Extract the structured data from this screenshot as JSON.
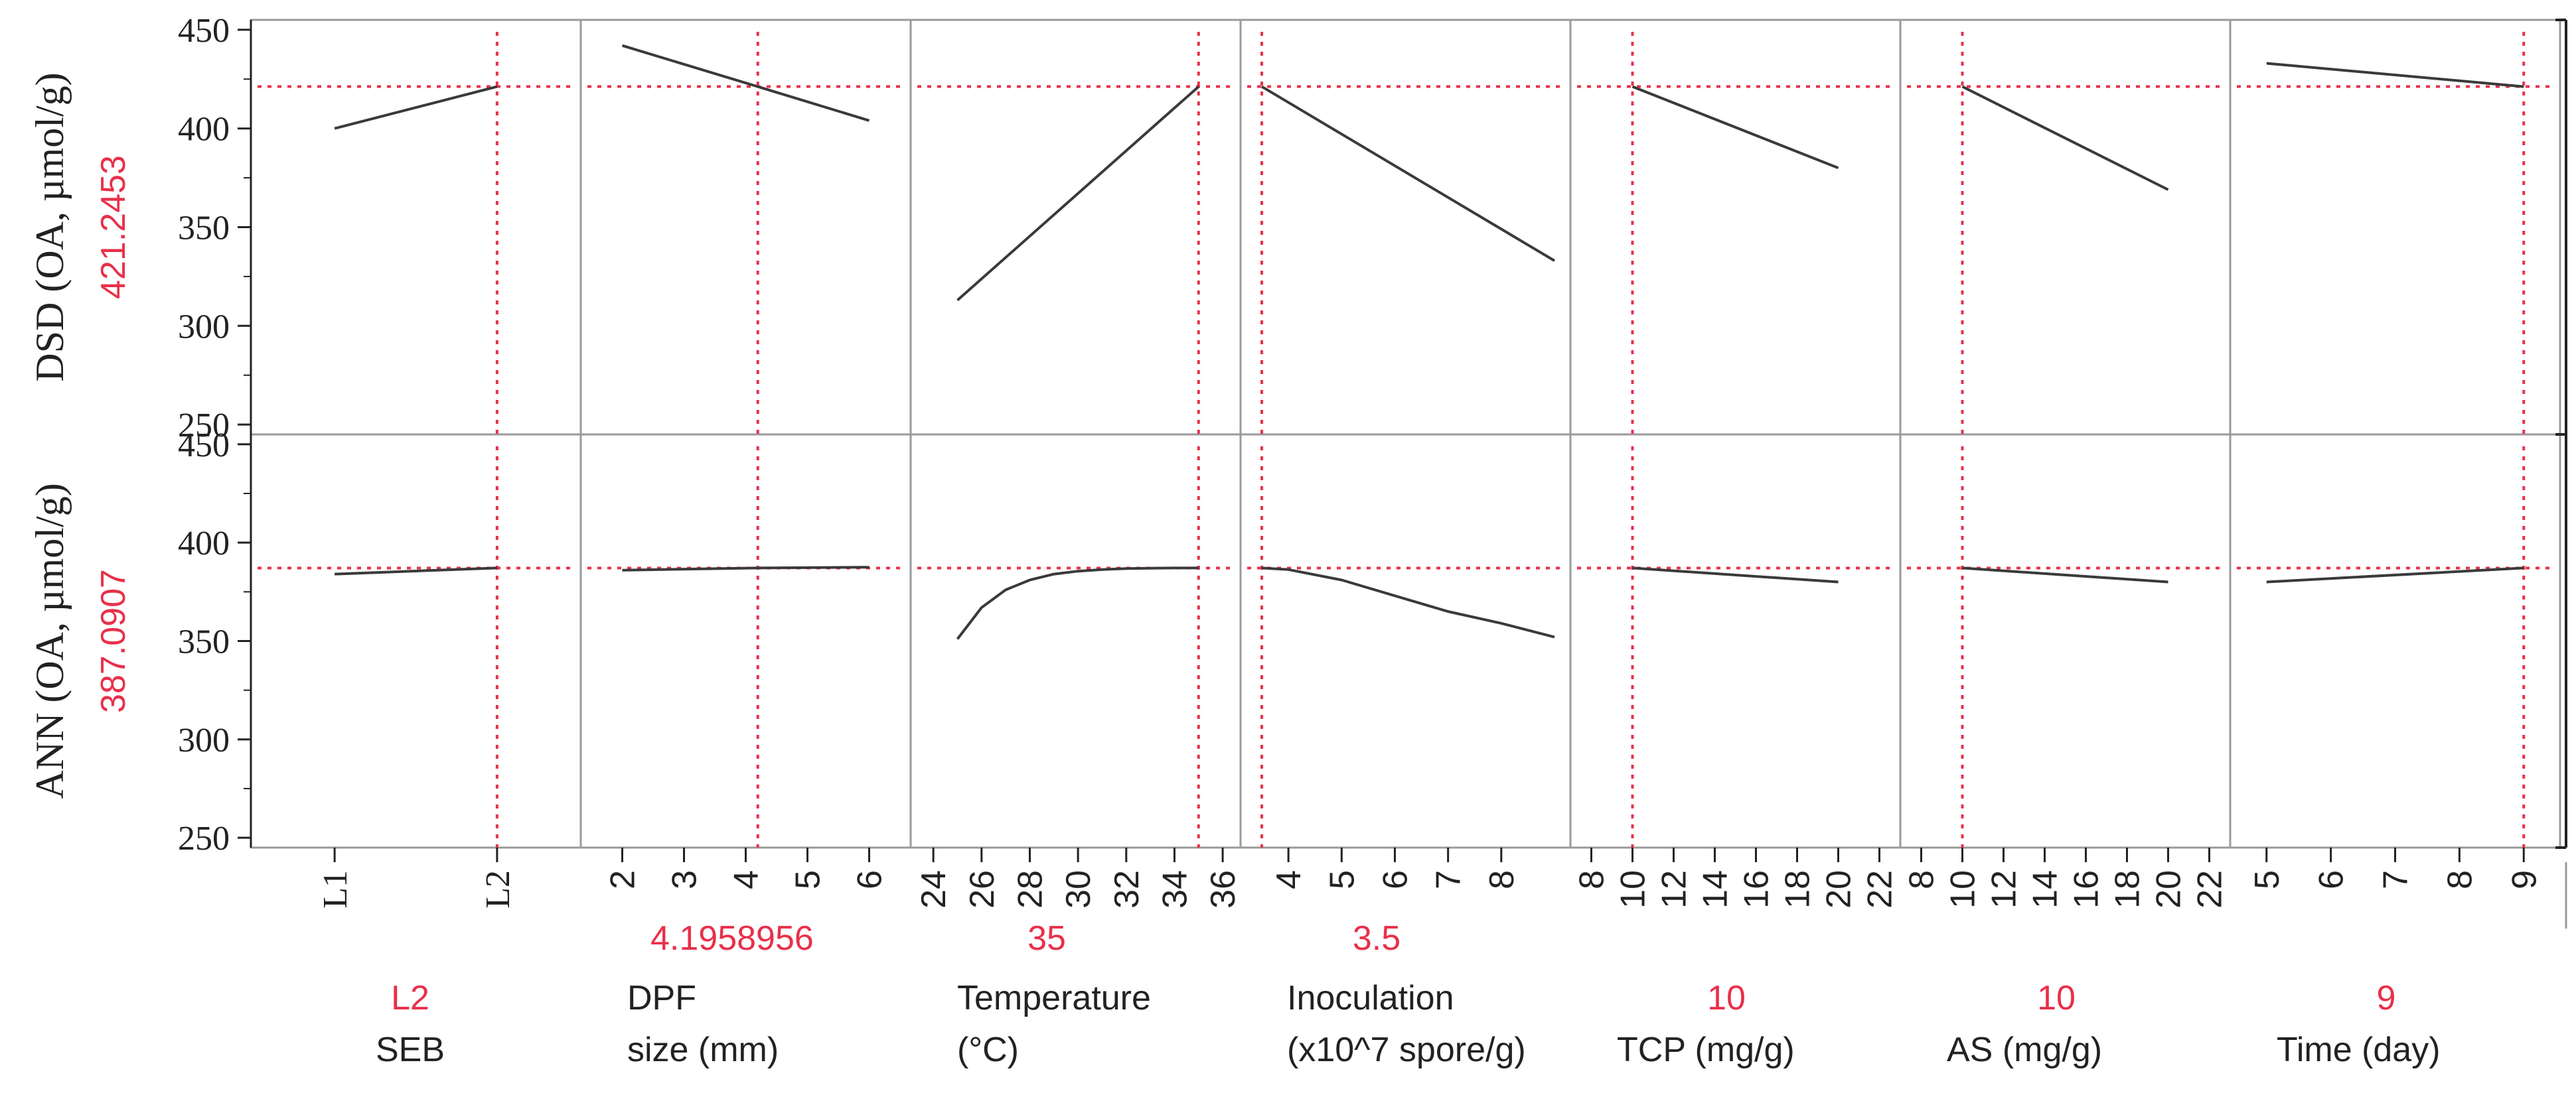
{
  "colors": {
    "curve": "#3a3a3a",
    "reference": "#e8304a",
    "frame": "#9a9a9a",
    "label": "#222222"
  },
  "chart_data": {
    "type": "line",
    "subtype": "prediction-profiler",
    "y_range": [
      245,
      455
    ],
    "y_ticks": [
      250,
      300,
      350,
      400,
      450
    ],
    "responses": [
      {
        "label": "DSD (OA, µmol/g)",
        "current_value": "421.2453",
        "current": 421.2453
      },
      {
        "label": "ANN (OA, µmol/g)",
        "current_value": "387.0907",
        "current": 387.0907
      }
    ],
    "factors": [
      {
        "name_lines": [
          "SEB"
        ],
        "value_label": "L2",
        "type": "categorical",
        "categories": [
          "L1",
          "L2"
        ],
        "tick_labels": [
          "L1",
          "L2"
        ],
        "domain": [
          0.55,
          2.45
        ],
        "current": 2,
        "curves": [
          {
            "x": [
              1,
              2
            ],
            "y": [
              400,
              421.2
            ]
          },
          {
            "x": [
              1,
              2
            ],
            "y": [
              384,
              387.1
            ]
          }
        ]
      },
      {
        "name_lines": [
          "DPF",
          "size (mm)"
        ],
        "value_label": "4.1958956",
        "type": "continuous",
        "ticks": [
          2,
          3,
          4,
          5,
          6
        ],
        "tick_labels": [
          "2",
          "3",
          "4",
          "5",
          "6"
        ],
        "domain": [
          1.5,
          6.5
        ],
        "current": 4.1958956,
        "curves": [
          {
            "x": [
              2,
              4.1958956,
              6
            ],
            "y": [
              442,
              421.2,
              404
            ]
          },
          {
            "x": [
              2,
              4.1958956,
              6
            ],
            "y": [
              386,
              387.1,
              387.5
            ]
          }
        ]
      },
      {
        "name_lines": [
          "Temperature",
          "(°C)"
        ],
        "value_label": "35",
        "type": "continuous",
        "ticks": [
          24,
          26,
          28,
          30,
          32,
          34,
          36
        ],
        "tick_labels": [
          "24",
          "26",
          "28",
          "30",
          "32",
          "34",
          "36"
        ],
        "domain": [
          23.5,
          36.3
        ],
        "current": 35,
        "curves": [
          {
            "x": [
              25,
              35
            ],
            "y": [
              313,
              421.2
            ]
          },
          {
            "x": [
              25,
              26,
              27,
              28,
              29,
              30,
              31,
              32,
              33,
              34,
              35
            ],
            "y": [
              351,
              367,
              376,
              381,
              384,
              385.5,
              386.3,
              386.8,
              387,
              387.1,
              387.1
            ]
          }
        ]
      },
      {
        "name_lines": [
          "Inoculation",
          "(x10^7 spore/g)"
        ],
        "value_label": "3.5",
        "type": "continuous",
        "ticks": [
          4,
          5,
          6,
          7,
          8
        ],
        "tick_labels": [
          "4",
          "5",
          "6",
          "7",
          "8"
        ],
        "domain": [
          3.3,
          9.1
        ],
        "current": 3.5,
        "curves": [
          {
            "x": [
              3.5,
              9
            ],
            "y": [
              421.2,
              333
            ]
          },
          {
            "x": [
              3.5,
              4,
              5,
              6,
              7,
              8,
              9
            ],
            "y": [
              387.1,
              386.3,
              381,
              373,
              365,
              359,
              352
            ]
          }
        ]
      },
      {
        "name_lines": [
          "TCP (mg/g)"
        ],
        "value_label": "10",
        "type": "continuous",
        "ticks": [
          8,
          10,
          12,
          14,
          16,
          18,
          20,
          22
        ],
        "tick_labels": [
          "8",
          "10",
          "12",
          "14",
          "16",
          "18",
          "20",
          "22"
        ],
        "domain": [
          7.5,
          22.5
        ],
        "current": 10,
        "curves": [
          {
            "x": [
              10,
              20
            ],
            "y": [
              421.2,
              380
            ]
          },
          {
            "x": [
              10,
              20
            ],
            "y": [
              387.1,
              380
            ]
          }
        ]
      },
      {
        "name_lines": [
          "AS (mg/g)"
        ],
        "value_label": "10",
        "type": "continuous",
        "ticks": [
          8,
          10,
          12,
          14,
          16,
          18,
          20,
          22
        ],
        "tick_labels": [
          "8",
          "10",
          "12",
          "14",
          "16",
          "18",
          "20",
          "22"
        ],
        "domain": [
          7.5,
          22.5
        ],
        "current": 10,
        "curves": [
          {
            "x": [
              10,
              20
            ],
            "y": [
              421.2,
              369
            ]
          },
          {
            "x": [
              10,
              20
            ],
            "y": [
              387.1,
              380
            ]
          }
        ]
      },
      {
        "name_lines": [
          "Time (day)"
        ],
        "value_label": "9",
        "type": "continuous",
        "ticks": [
          5,
          6,
          7,
          8,
          9
        ],
        "tick_labels": [
          "5",
          "6",
          "7",
          "8",
          "9"
        ],
        "domain": [
          4.6,
          9.4
        ],
        "current": 9,
        "curves": [
          {
            "x": [
              5,
              9
            ],
            "y": [
              433,
              421.2
            ]
          },
          {
            "x": [
              5,
              9
            ],
            "y": [
              380,
              387.1
            ]
          }
        ]
      }
    ]
  }
}
